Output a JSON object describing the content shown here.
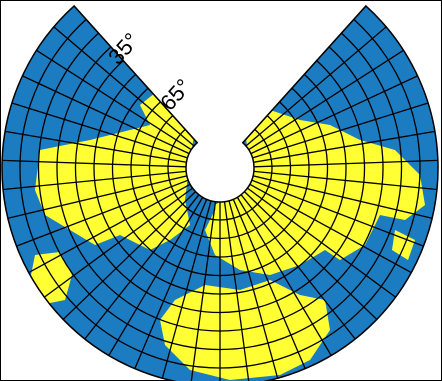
{
  "map": {
    "parallel_labels": [
      {
        "text": "35°"
      },
      {
        "text": "65°"
      }
    ]
  }
}
